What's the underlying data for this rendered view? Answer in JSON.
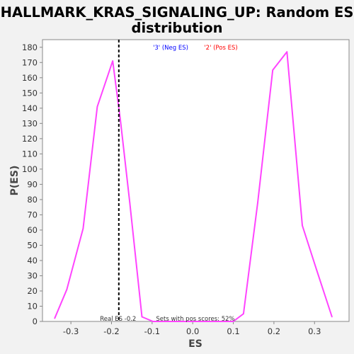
{
  "chart_data": {
    "type": "line",
    "title_lines": [
      "HALLMARK_KRAS_SIGNALING_UP: Random ES",
      "distribution"
    ],
    "xlabel": "ES",
    "ylabel": "P(ES)",
    "xlim": [
      -0.37,
      0.385
    ],
    "ylim": [
      0,
      185
    ],
    "x_ticks": [
      -0.3,
      -0.2,
      -0.1,
      0.0,
      0.1,
      0.2,
      0.3
    ],
    "x_tick_labels": [
      "-0.3",
      "-0.2",
      "-0.1",
      "0.0",
      "0.1",
      "0.2",
      "0.3"
    ],
    "y_ticks": [
      0,
      10,
      20,
      30,
      40,
      50,
      60,
      70,
      80,
      90,
      100,
      110,
      120,
      130,
      140,
      150,
      160,
      170,
      180
    ],
    "y_tick_labels": [
      "0",
      "10",
      "20",
      "30",
      "40",
      "50",
      "60",
      "70",
      "80",
      "90",
      "100",
      "110",
      "120",
      "130",
      "140",
      "150",
      "160",
      "170",
      "180"
    ],
    "grid": false,
    "legend": [
      {
        "label": "'3' (Neg ES)",
        "color": "#0000ff"
      },
      {
        "label": "'2' (Pos ES)",
        "color": "#ff0000"
      }
    ],
    "series": [
      {
        "color": "#ff44ff",
        "points": [
          [
            -0.34,
            2
          ],
          [
            -0.31,
            21
          ],
          [
            -0.27,
            61
          ],
          [
            -0.235,
            141
          ],
          [
            -0.197,
            171
          ],
          [
            -0.178,
            132
          ],
          [
            -0.155,
            78
          ],
          [
            -0.125,
            3
          ],
          [
            -0.098,
            0
          ],
          [
            0.0,
            0
          ],
          [
            0.1,
            0
          ],
          [
            0.125,
            5
          ],
          [
            0.16,
            78
          ],
          [
            0.197,
            165
          ],
          [
            0.232,
            177
          ],
          [
            0.27,
            63
          ],
          [
            0.305,
            34
          ],
          [
            0.343,
            3
          ]
        ]
      }
    ],
    "real_es": {
      "value": -0.182,
      "label": "Real ES -0.2"
    },
    "annotation": "Sets with pos scores: 52%"
  }
}
